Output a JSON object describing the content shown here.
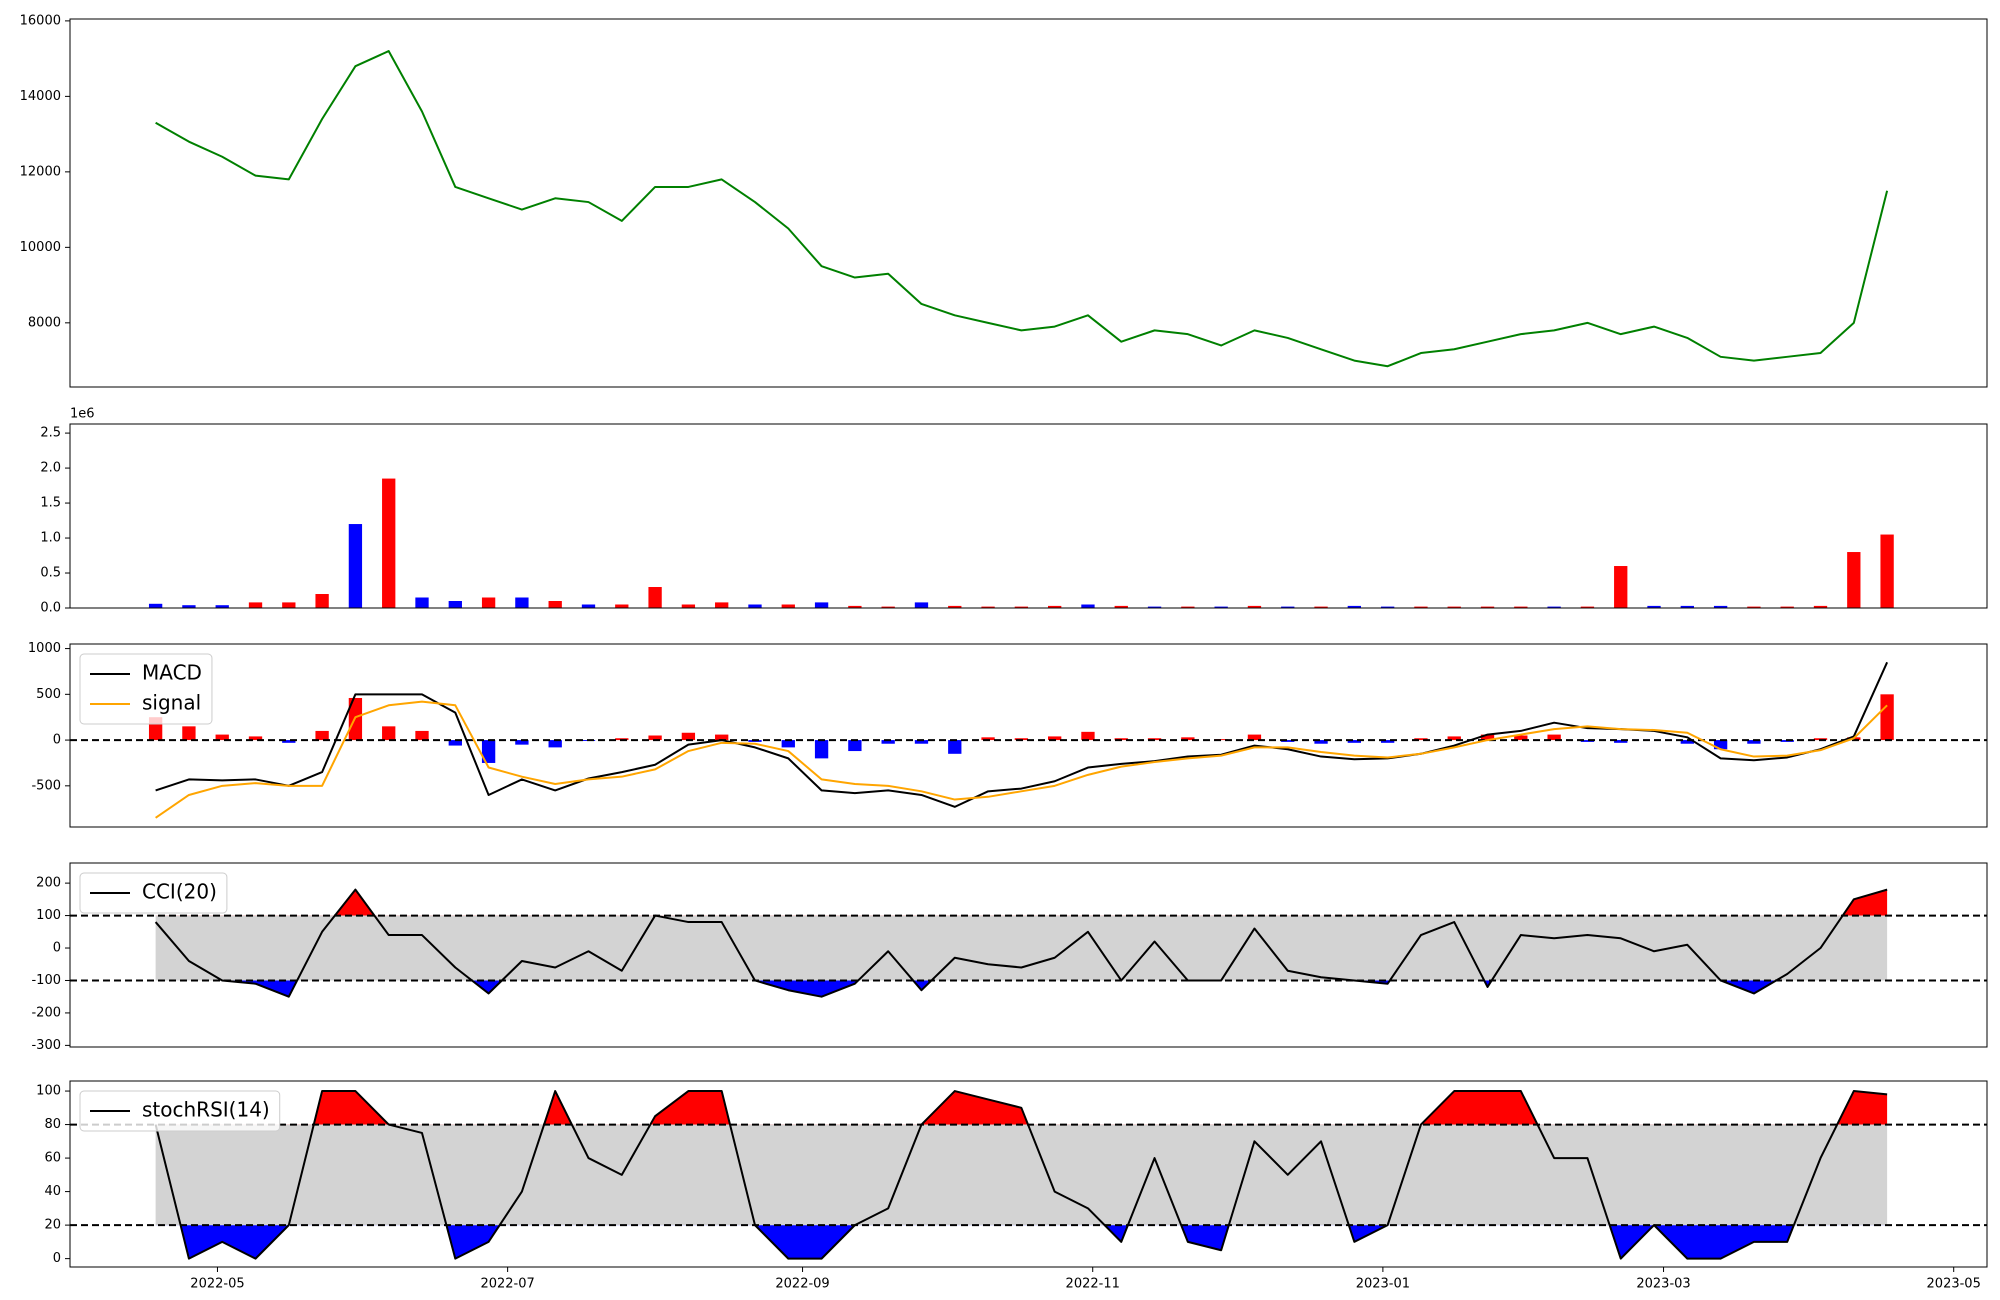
{
  "chart_data": [
    {
      "type": "line",
      "xlim": [
        19082,
        19485
      ],
      "ylim": [
        6300,
        16050
      ],
      "yticks": [
        8000,
        10000,
        12000,
        14000,
        16000
      ],
      "x": [
        19100,
        19107,
        19114,
        19121,
        19128,
        19135,
        19142,
        19149,
        19156,
        19163,
        19170,
        19177,
        19184,
        19191,
        19198,
        19205,
        19212,
        19219,
        19226,
        19233,
        19240,
        19247,
        19254,
        19261,
        19268,
        19275,
        19282,
        19289,
        19296,
        19303,
        19310,
        19317,
        19324,
        19331,
        19338,
        19345,
        19352,
        19359,
        19366,
        19373,
        19380,
        19387,
        19394,
        19401,
        19408,
        19415,
        19422,
        19429,
        19436,
        19443,
        19450,
        19457,
        19464
      ],
      "series": [
        {
          "color": "#008000",
          "values": [
            13300,
            12800,
            12400,
            11900,
            11800,
            13400,
            14800,
            15200,
            13600,
            11600,
            11300,
            11000,
            11300,
            11200,
            10700,
            11600,
            11600,
            11800,
            11200,
            10500,
            9500,
            9200,
            9300,
            8500,
            8200,
            8000,
            7800,
            7900,
            8200,
            7500,
            7800,
            7700,
            7400,
            7800,
            7600,
            7300,
            7000,
            6850,
            7200,
            7300,
            7500,
            7700,
            7800,
            8000,
            7700,
            7900,
            7600,
            7100,
            7000,
            7100,
            7200,
            8000,
            11500
          ]
        }
      ]
    },
    {
      "type": "bar",
      "offset_text": "1e6",
      "xlim": [
        19082,
        19485
      ],
      "ylim": [
        0,
        2.63
      ],
      "yticks": [
        {
          "value": 0,
          "label": "0.0"
        },
        0.5,
        {
          "value": 1,
          "label": "1.0"
        },
        1.5,
        {
          "value": 2,
          "label": "2.0"
        },
        2.5
      ],
      "x": [
        19100,
        19107,
        19114,
        19121,
        19128,
        19135,
        19142,
        19149,
        19156,
        19163,
        19170,
        19177,
        19184,
        19191,
        19198,
        19205,
        19212,
        19219,
        19226,
        19233,
        19240,
        19247,
        19254,
        19261,
        19268,
        19275,
        19282,
        19289,
        19296,
        19303,
        19310,
        19317,
        19324,
        19331,
        19338,
        19345,
        19352,
        19359,
        19366,
        19373,
        19380,
        19387,
        19394,
        19401,
        19408,
        19415,
        19422,
        19429,
        19436,
        19443,
        19450,
        19457,
        19464
      ],
      "values": [
        0.06,
        0.04,
        0.04,
        0.08,
        0.08,
        0.2,
        1.2,
        1.85,
        0.15,
        0.1,
        0.15,
        0.15,
        0.1,
        0.05,
        0.05,
        0.3,
        0.05,
        0.08,
        0.05,
        0.05,
        0.08,
        0.03,
        0.02,
        0.08,
        0.03,
        0.02,
        0.02,
        0.03,
        0.05,
        0.03,
        0.02,
        0.02,
        0.02,
        0.03,
        0.02,
        0.02,
        0.03,
        0.02,
        0.02,
        0.02,
        0.02,
        0.02,
        0.02,
        0.02,
        0.6,
        0.03,
        0.03,
        0.03,
        0.02,
        0.02,
        0.03,
        0.8,
        1.05
      ],
      "colors": [
        "#0000ff",
        "#0000ff",
        "#0000ff",
        "#ff0000",
        "#ff0000",
        "#ff0000",
        "#0000ff",
        "#ff0000",
        "#0000ff",
        "#0000ff",
        "#ff0000",
        "#0000ff",
        "#ff0000",
        "#0000ff",
        "#ff0000",
        "#ff0000",
        "#ff0000",
        "#ff0000",
        "#0000ff",
        "#ff0000",
        "#0000ff",
        "#ff0000",
        "#ff0000",
        "#0000ff",
        "#ff0000",
        "#ff0000",
        "#ff0000",
        "#ff0000",
        "#0000ff",
        "#ff0000",
        "#0000ff",
        "#ff0000",
        "#0000ff",
        "#ff0000",
        "#0000ff",
        "#ff0000",
        "#0000ff",
        "#0000ff",
        "#ff0000",
        "#ff0000",
        "#ff0000",
        "#ff0000",
        "#0000ff",
        "#ff0000",
        "#ff0000",
        "#0000ff",
        "#0000ff",
        "#0000ff",
        "#ff0000",
        "#ff0000",
        "#ff0000",
        "#ff0000",
        "#ff0000"
      ]
    },
    {
      "type": "line",
      "legend": "upper left",
      "xlim": [
        19082,
        19485
      ],
      "ylim": [
        -950,
        1050
      ],
      "yticks": [
        -500,
        0,
        500,
        1000
      ],
      "hlines": [
        0
      ],
      "x": [
        19100,
        19107,
        19114,
        19121,
        19128,
        19135,
        19142,
        19149,
        19156,
        19163,
        19170,
        19177,
        19184,
        19191,
        19198,
        19205,
        19212,
        19219,
        19226,
        19233,
        19240,
        19247,
        19254,
        19261,
        19268,
        19275,
        19282,
        19289,
        19296,
        19303,
        19310,
        19317,
        19324,
        19331,
        19338,
        19345,
        19352,
        19359,
        19366,
        19373,
        19380,
        19387,
        19394,
        19401,
        19408,
        19415,
        19422,
        19429,
        19436,
        19443,
        19450,
        19457,
        19464
      ],
      "histogram": {
        "pos_color": "#ff0000",
        "neg_color": "#0000ff",
        "values": [
          250,
          150,
          60,
          40,
          -30,
          100,
          460,
          150,
          100,
          -60,
          -250,
          -50,
          -80,
          -10,
          20,
          50,
          80,
          60,
          -20,
          -80,
          -200,
          -120,
          -40,
          -40,
          -150,
          30,
          20,
          40,
          90,
          20,
          20,
          30,
          10,
          60,
          -20,
          -40,
          -30,
          -30,
          20,
          40,
          60,
          50,
          60,
          -20,
          -30,
          0,
          -40,
          -100,
          -40,
          -20,
          20,
          30,
          500
        ]
      },
      "series": [
        {
          "name": "MACD",
          "color": "#000000",
          "values": [
            -550,
            -430,
            -440,
            -430,
            -500,
            -350,
            500,
            500,
            500,
            300,
            -600,
            -430,
            -550,
            -420,
            -350,
            -270,
            -50,
            0,
            -80,
            -200,
            -550,
            -580,
            -550,
            -600,
            -730,
            -560,
            -530,
            -450,
            -300,
            -260,
            -230,
            -180,
            -160,
            -60,
            -100,
            -180,
            -210,
            -200,
            -150,
            -60,
            60,
            100,
            190,
            130,
            120,
            100,
            30,
            -200,
            -220,
            -190,
            -100,
            40,
            850
          ]
        },
        {
          "name": "signal",
          "color": "#ffa500",
          "values": [
            -850,
            -600,
            -500,
            -470,
            -500,
            -500,
            250,
            380,
            420,
            380,
            -300,
            -400,
            -480,
            -430,
            -400,
            -320,
            -120,
            -30,
            -40,
            -120,
            -430,
            -480,
            -500,
            -560,
            -650,
            -620,
            -560,
            -500,
            -380,
            -290,
            -240,
            -200,
            -170,
            -80,
            -80,
            -130,
            -170,
            -190,
            -150,
            -80,
            0,
            60,
            120,
            150,
            120,
            110,
            80,
            -100,
            -180,
            -170,
            -110,
            20,
            380
          ]
        }
      ]
    },
    {
      "type": "line",
      "legend": "upper left",
      "xlim": [
        19082,
        19485
      ],
      "ylim": [
        -305,
        262
      ],
      "yticks": [
        -300,
        -200,
        -100,
        0,
        100,
        200
      ],
      "hlines": [
        -100,
        100
      ],
      "fills": {
        "band": "#d3d3d3",
        "above": "#ff0000",
        "below": "#0000ff"
      },
      "x": [
        19100,
        19107,
        19114,
        19121,
        19128,
        19135,
        19142,
        19149,
        19156,
        19163,
        19170,
        19177,
        19184,
        19191,
        19198,
        19205,
        19212,
        19219,
        19226,
        19233,
        19240,
        19247,
        19254,
        19261,
        19268,
        19275,
        19282,
        19289,
        19296,
        19303,
        19310,
        19317,
        19324,
        19331,
        19338,
        19345,
        19352,
        19359,
        19366,
        19373,
        19380,
        19387,
        19394,
        19401,
        19408,
        19415,
        19422,
        19429,
        19436,
        19443,
        19450,
        19457,
        19464
      ],
      "series": [
        {
          "name": "CCI(20)",
          "color": "#000000",
          "values": [
            80,
            -40,
            -100,
            -110,
            -150,
            50,
            180,
            40,
            40,
            -60,
            -140,
            -40,
            -60,
            -10,
            -70,
            100,
            80,
            80,
            -100,
            -130,
            -150,
            -110,
            -10,
            -130,
            -30,
            -50,
            -60,
            -30,
            50,
            -100,
            20,
            -100,
            -100,
            60,
            -70,
            -90,
            -100,
            -110,
            40,
            80,
            -120,
            40,
            30,
            40,
            30,
            -10,
            10,
            -100,
            -140,
            -80,
            0,
            150,
            180
          ]
        }
      ]
    },
    {
      "type": "line",
      "legend": "upper left",
      "xlim": [
        19082,
        19485
      ],
      "ylim": [
        -5,
        106
      ],
      "yticks": [
        0,
        20,
        40,
        60,
        80,
        100
      ],
      "hlines": [
        20,
        80
      ],
      "fills": {
        "band": "#d3d3d3",
        "above": "#ff0000",
        "below": "#0000ff"
      },
      "xticks": [
        {
          "value": 19113,
          "label": "2022-05"
        },
        {
          "value": 19174,
          "label": "2022-07"
        },
        {
          "value": 19236,
          "label": "2022-09"
        },
        {
          "value": 19297,
          "label": "2022-11"
        },
        {
          "value": 19358,
          "label": "2023-01"
        },
        {
          "value": 19417,
          "label": "2023-03"
        },
        {
          "value": 19478,
          "label": "2023-05"
        }
      ],
      "x": [
        19100,
        19107,
        19114,
        19121,
        19128,
        19135,
        19142,
        19149,
        19156,
        19163,
        19170,
        19177,
        19184,
        19191,
        19198,
        19205,
        19212,
        19219,
        19226,
        19233,
        19240,
        19247,
        19254,
        19261,
        19268,
        19275,
        19282,
        19289,
        19296,
        19303,
        19310,
        19317,
        19324,
        19331,
        19338,
        19345,
        19352,
        19359,
        19366,
        19373,
        19380,
        19387,
        19394,
        19401,
        19408,
        19415,
        19422,
        19429,
        19436,
        19443,
        19450,
        19457,
        19464
      ],
      "series": [
        {
          "name": "stochRSI(14)",
          "color": "#000000",
          "values": [
            80,
            0,
            10,
            0,
            20,
            100,
            100,
            80,
            75,
            0,
            10,
            40,
            100,
            60,
            50,
            85,
            100,
            100,
            20,
            0,
            0,
            20,
            30,
            80,
            100,
            95,
            90,
            40,
            30,
            10,
            60,
            10,
            5,
            70,
            50,
            70,
            10,
            20,
            80,
            100,
            100,
            100,
            60,
            60,
            0,
            20,
            0,
            0,
            10,
            10,
            60,
            100,
            98
          ]
        }
      ]
    }
  ]
}
